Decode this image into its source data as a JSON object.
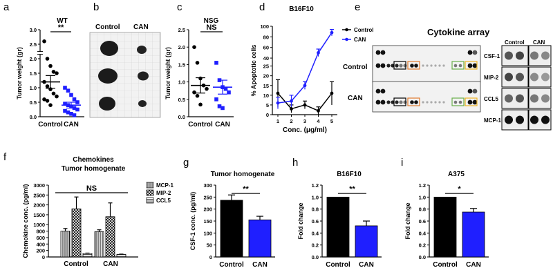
{
  "panel_labels": {
    "a": "a",
    "b": "b",
    "c": "c",
    "d": "d",
    "e": "e",
    "f": "f",
    "g": "g",
    "h": "h",
    "i": "i"
  },
  "photo": {
    "label_control": "Control",
    "label_can": "CAN"
  },
  "array": {
    "title": "Cytokine array",
    "row_control": "Control",
    "row_can": "CAN",
    "col_control": "Control",
    "col_can": "CAN",
    "cytokines": [
      {
        "name": "CSF-1",
        "color": "#000000"
      },
      {
        "name": "MIP-2",
        "color": "#6ab04c"
      },
      {
        "name": "CCL5",
        "color": "#f0b323"
      },
      {
        "name": "MCP-1",
        "color": "#e07b2e"
      }
    ]
  },
  "colors": {
    "can_blue": "#1f1fff",
    "control_black": "#000000"
  },
  "chart_data": [
    {
      "id": "a",
      "type": "scatter",
      "title": "WT",
      "xlabel": "",
      "ylabel": "Tumor weight (gr)",
      "categories": [
        "Control",
        "CAN"
      ],
      "series": [
        {
          "values": [
            2.6,
            2.0,
            1.75,
            1.55,
            1.5,
            1.2,
            1.05,
            0.95,
            0.8,
            0.7,
            0.6,
            0.55,
            0.4
          ]
        },
        {
          "values": [
            1.0,
            0.9,
            0.75,
            0.6,
            0.5,
            0.45,
            0.4,
            0.35,
            0.3,
            0.25,
            0.2,
            0.15,
            0.1,
            0.05
          ]
        }
      ],
      "means": [
        1.2,
        0.4
      ],
      "sem": [
        0.22,
        0.1
      ],
      "ylim": [
        0,
        3.0
      ],
      "yticks": [
        "0.0",
        "0.5",
        "1.0",
        "1.5",
        "2.0",
        "2.5",
        "3.0"
      ],
      "significance": "**"
    },
    {
      "id": "c",
      "type": "scatter",
      "title": "NSG",
      "xlabel": "",
      "ylabel": "Tumor weight (gr)",
      "categories": [
        "Control",
        "CAN"
      ],
      "series": [
        {
          "values": [
            2.0,
            1.55,
            1.1,
            0.9,
            0.8,
            0.7,
            0.6,
            0.35
          ]
        },
        {
          "values": [
            1.55,
            1.05,
            0.85,
            0.8,
            0.7,
            0.5,
            0.3,
            0.25
          ]
        }
      ],
      "means": [
        0.9,
        0.85
      ],
      "sem": [
        0.22,
        0.2
      ],
      "ylim": [
        0,
        2.5
      ],
      "yticks": [
        "0.0",
        "0.5",
        "1.0",
        "1.5",
        "2.0",
        "2.5"
      ],
      "significance": "NS"
    },
    {
      "id": "d",
      "type": "line",
      "title": "B16F10",
      "xlabel": "Conc. (μg/ml)",
      "ylabel": "% Apoptotic cells",
      "x": [
        1,
        2,
        3,
        4,
        5
      ],
      "xlim": [
        1,
        5
      ],
      "ylim": [
        0,
        100
      ],
      "yticks": [
        "0",
        "5",
        "10",
        "15",
        "20",
        "25",
        "40",
        "60",
        "80",
        "100"
      ],
      "series": [
        {
          "name": "Control",
          "values": [
            11,
            3,
            5,
            2,
            11
          ],
          "err": [
            7,
            2,
            2,
            2,
            6
          ],
          "color": "#000000"
        },
        {
          "name": "CAN",
          "values": [
            6,
            7,
            15,
            50,
            88
          ],
          "err": [
            3,
            3,
            2,
            7,
            6
          ],
          "color": "#1f1fff"
        }
      ]
    },
    {
      "id": "f",
      "type": "bar",
      "title": "Chemokines",
      "subtitle": "Tumor homogenate",
      "xlabel": "",
      "ylabel": "Chemokine conc. (pg/ml)",
      "categories": [
        "Control",
        "CAN"
      ],
      "series": [
        {
          "name": "MCP-1",
          "values": [
            800,
            780
          ],
          "err": [
            80,
            60
          ]
        },
        {
          "name": "MIP-2",
          "values": [
            1800,
            1400
          ],
          "err": [
            600,
            700
          ]
        },
        {
          "name": "CCL5",
          "values": [
            110,
            80
          ],
          "err": [
            10,
            10
          ]
        }
      ],
      "ylim": [
        0,
        3000
      ],
      "yticks": [
        "0",
        "200",
        "400",
        "600",
        "800",
        "1000",
        "1500",
        "2000",
        "2500",
        "3000"
      ],
      "significance": "NS"
    },
    {
      "id": "g",
      "type": "bar",
      "title": "Tumor homogenate",
      "xlabel": "",
      "ylabel": "CSF-1 conc. (pg/ml)",
      "categories": [
        "Control",
        "CAN"
      ],
      "values": [
        237,
        155
      ],
      "err": [
        22,
        15
      ],
      "ylim": [
        0,
        300
      ],
      "yticks": [
        "0",
        "50",
        "100",
        "150",
        "200",
        "250",
        "300"
      ],
      "significance": "**"
    },
    {
      "id": "h",
      "type": "bar",
      "title": "B16F10",
      "xlabel": "",
      "ylabel": "Fold change",
      "categories": [
        "Control",
        "CAN"
      ],
      "values": [
        1.0,
        0.52
      ],
      "err": [
        0,
        0.08
      ],
      "ylim": [
        0,
        1.2
      ],
      "yticks": [
        "0.0",
        "0.2",
        "0.4",
        "0.6",
        "0.8",
        "1.0",
        "1.2"
      ],
      "significance": "**"
    },
    {
      "id": "i",
      "type": "bar",
      "title": "A375",
      "xlabel": "",
      "ylabel": "Fold change",
      "categories": [
        "Control",
        "CAN"
      ],
      "values": [
        1.0,
        0.75
      ],
      "err": [
        0,
        0.06
      ],
      "ylim": [
        0,
        1.2
      ],
      "yticks": [
        "0.0",
        "0.2",
        "0.4",
        "0.6",
        "0.8",
        "1.0",
        "1.2"
      ],
      "significance": "*"
    }
  ]
}
